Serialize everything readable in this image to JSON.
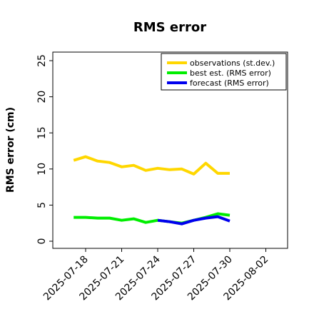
{
  "chart_data": {
    "type": "line",
    "title": "RMS error",
    "xlabel": "",
    "ylabel": "RMS error (cm)",
    "ylim": [
      0,
      26
    ],
    "yticks": [
      0,
      5,
      10,
      15,
      20,
      25
    ],
    "xlim": [
      "2025-07-16",
      "2025-08-04"
    ],
    "xticks": [
      "2025-07-18",
      "2025-07-21",
      "2025-07-24",
      "2025-07-27",
      "2025-07-30",
      "2025-08-02"
    ],
    "highlighted_xtick": "2025-07-24",
    "highlight_color": "#228b22",
    "grid": false,
    "legend_position": "top-right",
    "series": [
      {
        "name": "observations (st.dev.)",
        "color": "#ffd700",
        "x": [
          "2025-07-17",
          "2025-07-18",
          "2025-07-19",
          "2025-07-20",
          "2025-07-21",
          "2025-07-22",
          "2025-07-23",
          "2025-07-24",
          "2025-07-25",
          "2025-07-26",
          "2025-07-27",
          "2025-07-28",
          "2025-07-29",
          "2025-07-30"
        ],
        "values": [
          11.2,
          11.7,
          11.1,
          10.9,
          10.3,
          10.5,
          9.8,
          10.1,
          9.9,
          10.0,
          9.3,
          10.8,
          9.4,
          9.4
        ]
      },
      {
        "name": "best est. (RMS error)",
        "color": "#00ee00",
        "x": [
          "2025-07-17",
          "2025-07-18",
          "2025-07-19",
          "2025-07-20",
          "2025-07-21",
          "2025-07-22",
          "2025-07-23",
          "2025-07-24",
          "2025-07-25",
          "2025-07-26",
          "2025-07-27",
          "2025-07-28",
          "2025-07-29",
          "2025-07-30"
        ],
        "values": [
          3.3,
          3.3,
          3.2,
          3.2,
          2.9,
          3.1,
          2.6,
          2.9,
          2.7,
          2.5,
          2.9,
          3.3,
          3.8,
          3.6
        ]
      },
      {
        "name": "forecast (RMS error)",
        "color": "#0000ee",
        "x": [
          "2025-07-24",
          "2025-07-25",
          "2025-07-26",
          "2025-07-27",
          "2025-07-28",
          "2025-07-29",
          "2025-07-30"
        ],
        "values": [
          2.9,
          2.7,
          2.4,
          2.9,
          3.2,
          3.4,
          2.8
        ]
      }
    ]
  }
}
